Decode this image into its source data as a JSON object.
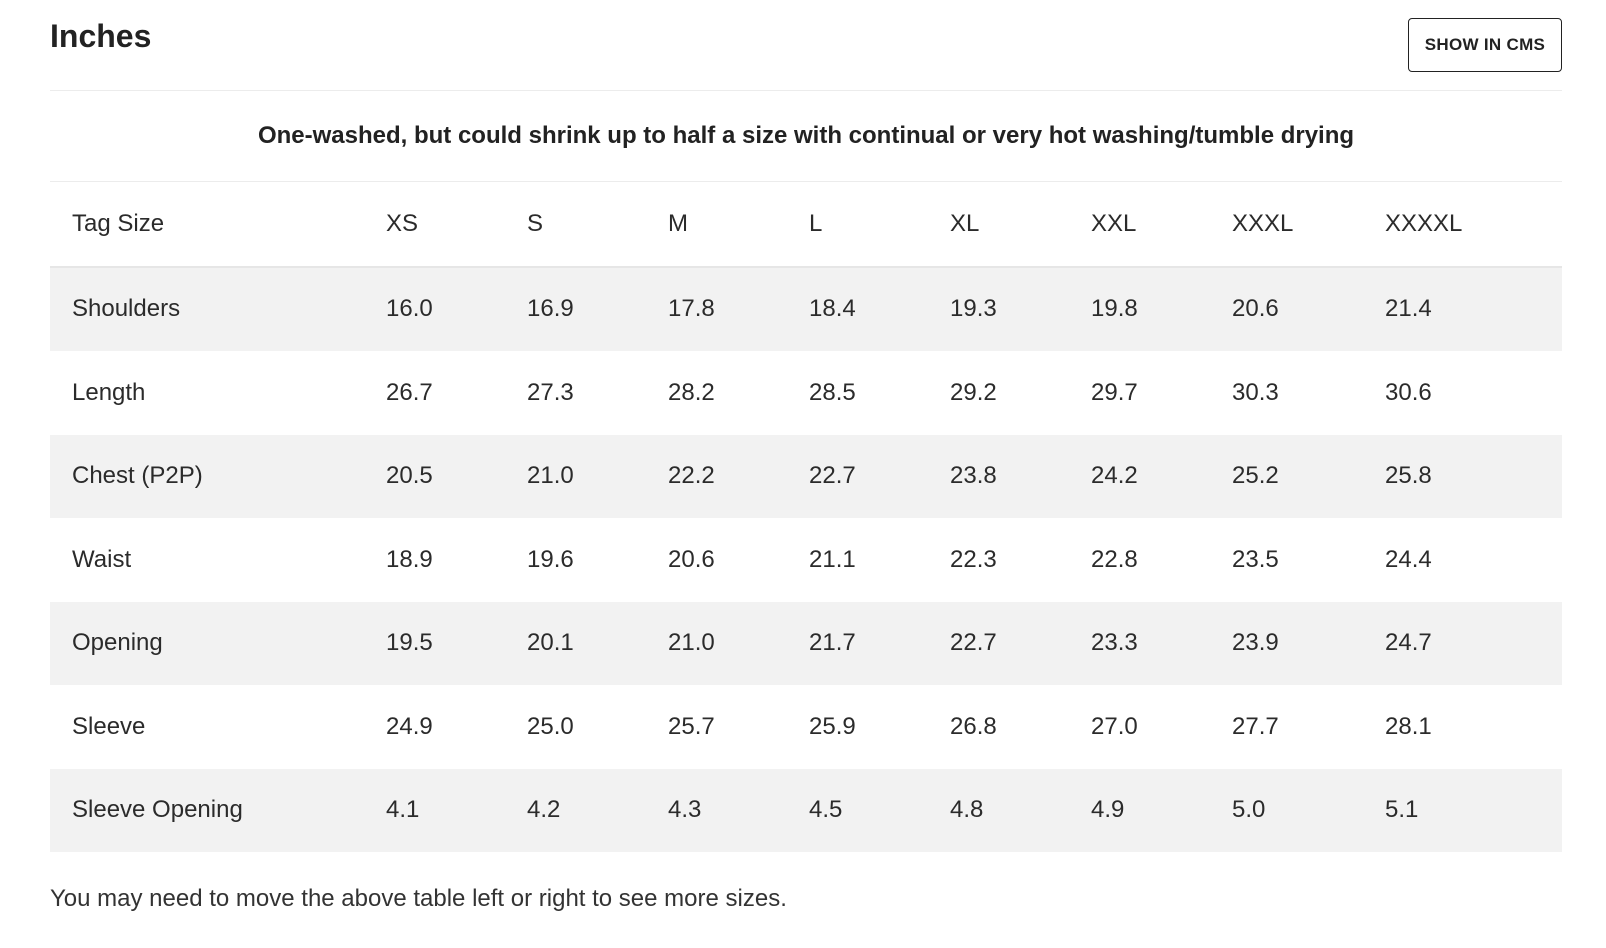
{
  "header": {
    "title": "Inches",
    "button_label": "SHOW IN CMS"
  },
  "note": "One-washed, but could shrink up to half a size with continual or very hot washing/tumble drying",
  "table": {
    "header_label": "Tag Size",
    "sizes": [
      "XS",
      "S",
      "M",
      "L",
      "XL",
      "XXL",
      "XXXL",
      "XXXXL"
    ],
    "rows": [
      {
        "label": "Shoulders",
        "values": [
          "16.0",
          "16.9",
          "17.8",
          "18.4",
          "19.3",
          "19.8",
          "20.6",
          "21.4"
        ]
      },
      {
        "label": "Length",
        "values": [
          "26.7",
          "27.3",
          "28.2",
          "28.5",
          "29.2",
          "29.7",
          "30.3",
          "30.6"
        ]
      },
      {
        "label": "Chest (P2P)",
        "values": [
          "20.5",
          "21.0",
          "22.2",
          "22.7",
          "23.8",
          "24.2",
          "25.2",
          "25.8"
        ]
      },
      {
        "label": "Waist",
        "values": [
          "18.9",
          "19.6",
          "20.6",
          "21.1",
          "22.3",
          "22.8",
          "23.5",
          "24.4"
        ]
      },
      {
        "label": "Opening",
        "values": [
          "19.5",
          "20.1",
          "21.0",
          "21.7",
          "22.7",
          "23.3",
          "23.9",
          "24.7"
        ]
      },
      {
        "label": "Sleeve",
        "values": [
          "24.9",
          "25.0",
          "25.7",
          "25.9",
          "26.8",
          "27.0",
          "27.7",
          "28.1"
        ]
      },
      {
        "label": "Sleeve Opening",
        "values": [
          "4.1",
          "4.2",
          "4.3",
          "4.5",
          "4.8",
          "4.9",
          "5.0",
          "5.1"
        ]
      }
    ]
  },
  "footnote": "You may need to move the above table left or right to see more sizes."
}
